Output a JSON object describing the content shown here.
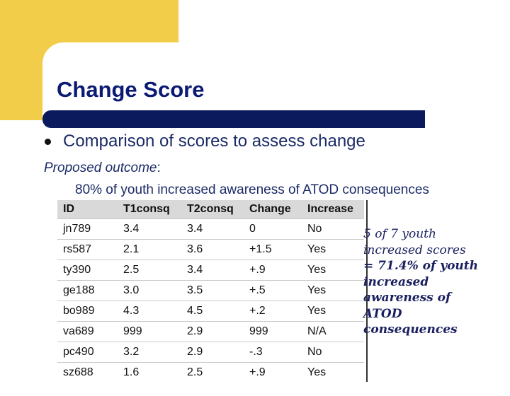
{
  "slide": {
    "title": "Change Score",
    "bullet": "Comparison of scores to assess change",
    "proposed_label": "Proposed outcome",
    "proposed_colon": ":",
    "outcome": "80% of youth increased awareness of ATOD consequences"
  },
  "table": {
    "headers": [
      "ID",
      "T1consq",
      "T2consq",
      "Change",
      "Increase"
    ],
    "rows": [
      [
        "jn789",
        "3.4",
        "3.4",
        "0",
        "No"
      ],
      [
        "rs587",
        "2.1",
        "3.6",
        "+1.5",
        "Yes"
      ],
      [
        "ty390",
        "2.5",
        "3.4",
        "+.9",
        "Yes"
      ],
      [
        "ge188",
        "3.0",
        "3.5",
        "+.5",
        "Yes"
      ],
      [
        "bo989",
        "4.3",
        "4.5",
        "+.2",
        "Yes"
      ],
      [
        "va689",
        "999",
        "2.9",
        "999",
        "N/A"
      ],
      [
        "pc490",
        "3.2",
        "2.9",
        "-.3",
        "No"
      ],
      [
        "sz688",
        "1.6",
        "2.5",
        "+.9",
        "Yes"
      ]
    ]
  },
  "callout": {
    "line1": "5 of 7 youth",
    "line2": "increased scores",
    "line3": "= 71.4% of youth",
    "line4": "increased",
    "line5": "awareness of",
    "line6": "ATOD",
    "line7": "consequences"
  },
  "colors": {
    "accent_yellow": "#f2cd4a",
    "title_bar_navy": "#0a1a5c",
    "title_text": "#0b1a72",
    "header_gray": "#d9d9d9"
  },
  "icons": {
    "bullet": "bullet-dot-icon"
  }
}
